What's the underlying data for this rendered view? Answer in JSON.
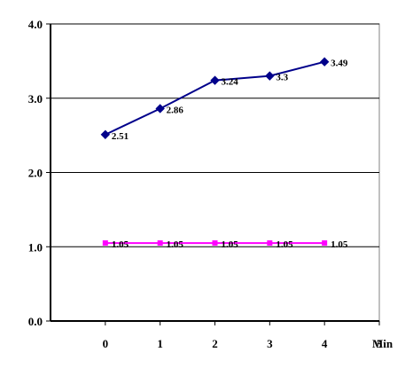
{
  "chart_data": {
    "type": "line",
    "x": [
      0,
      1,
      2,
      3,
      4
    ],
    "x_ticks": [
      "0",
      "1",
      "2",
      "3",
      "4",
      "5"
    ],
    "x_unit": "Min",
    "y_ticks": [
      "0.0",
      "1.0",
      "2.0",
      "3.0",
      "4.0"
    ],
    "xlim": [
      -1,
      5
    ],
    "ylim": [
      0,
      4
    ],
    "grid": "horizontal",
    "legend": "none",
    "series": [
      {
        "values": [
          2.51,
          2.86,
          3.24,
          3.3,
          3.49
        ],
        "labels": [
          "2.51",
          "2.86",
          "3.24",
          "3.3",
          "3.49"
        ],
        "color": "#00008B",
        "marker": "diamond"
      },
      {
        "values": [
          1.05,
          1.05,
          1.05,
          1.05,
          1.05
        ],
        "labels": [
          "1.05",
          "1.05",
          "1.05",
          "1.05",
          "1.05"
        ],
        "color": "#FF00FF",
        "marker": "square"
      }
    ]
  }
}
